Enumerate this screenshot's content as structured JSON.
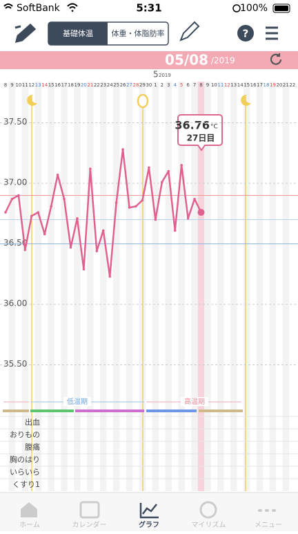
{
  "status_bar": {
    "carrier": "SoftBank",
    "time": "5:31",
    "battery": "100%"
  },
  "tabs": [
    "基礎体温",
    "体重・体脂肪率"
  ],
  "date_header": {
    "date": "05/08",
    "year": "/2019"
  },
  "chart_data": {
    "type": "line",
    "month": "5",
    "month_year": "2019",
    "categories": [
      "8",
      "9",
      "10",
      "11",
      "12",
      "13",
      "14",
      "15",
      "16",
      "17",
      "18",
      "19",
      "20",
      "21",
      "22",
      "23",
      "24",
      "25",
      "26",
      "27",
      "28",
      "29",
      "30",
      "1",
      "2",
      "3",
      "4",
      "5",
      "6",
      "7",
      "8",
      "9",
      "10",
      "11",
      "12",
      "13",
      "14",
      "15",
      "16",
      "17",
      "18",
      "19",
      "20",
      "21",
      "22"
    ],
    "values": [
      36.76,
      36.87,
      36.9,
      36.45,
      36.73,
      36.76,
      36.58,
      36.81,
      37.07,
      36.87,
      36.47,
      36.71,
      36.29,
      37.12,
      36.44,
      36.61,
      36.23,
      36.84,
      37.28,
      36.8,
      36.81,
      36.86,
      37.13,
      36.7,
      37.01,
      37.1,
      36.61,
      37.15,
      36.71,
      36.87,
      36.76,
      null,
      null,
      null,
      null,
      null,
      null,
      null,
      null,
      null,
      null,
      null,
      null,
      null,
      null
    ],
    "color": "#e0608f",
    "ylim": [
      35.3,
      37.8
    ],
    "yticks": [
      {
        "value": 37.5,
        "label": "37.50"
      },
      {
        "value": 37,
        "label": "37.00"
      },
      {
        "value": 36.5,
        "label": "36.50"
      },
      {
        "value": 36,
        "label": "36.00"
      },
      {
        "value": 35.5,
        "label": "35.50"
      }
    ],
    "grid": true,
    "reference_lines": [
      {
        "value": 36.9,
        "color": "#f29a9a"
      },
      {
        "value": 36.7,
        "color": "#b9d2ec"
      },
      {
        "value": 36.5,
        "color": "#8fb6e4"
      }
    ],
    "tooltip": {
      "value": "36.76",
      "unit": "°C",
      "day": "27日目"
    },
    "phases": [
      "低温期",
      "高温期"
    ]
  },
  "symptoms": [
    "出血",
    "おりもの",
    "腹痛",
    "胸のはり",
    "いらいら",
    "くすり1"
  ],
  "nav": [
    "ホーム",
    "カレンダー",
    "グラフ",
    "マイリズム",
    "メニュー"
  ]
}
